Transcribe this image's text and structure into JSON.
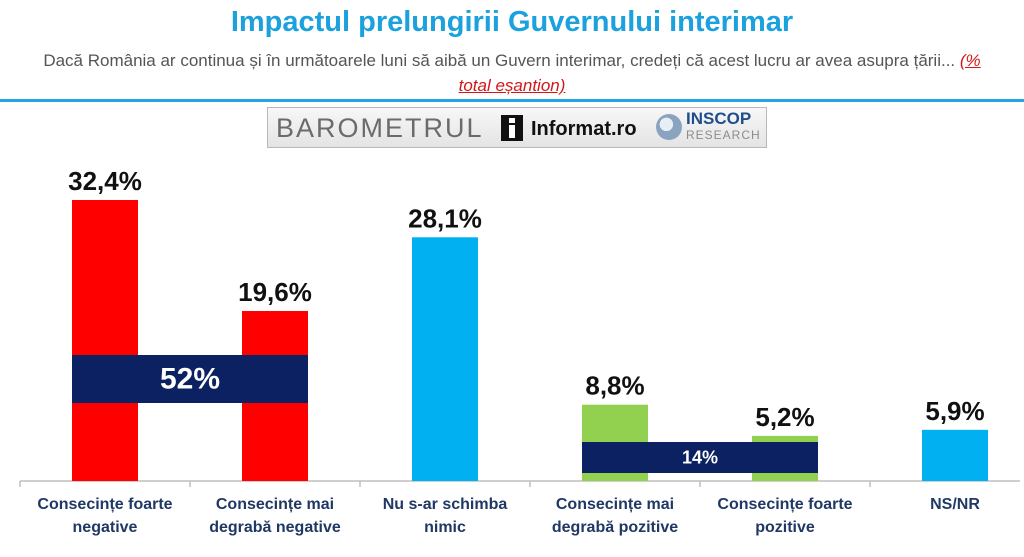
{
  "header": {
    "title": "Impactul prelungirii Guvernului interimar",
    "subtitle": "Dacă România ar continua și în următoarele luni să aibă un Guvern interimar, credeți că acest lucru ar avea asupra țării...",
    "subtitle_note": "(% total eșantion)"
  },
  "logo": {
    "barometrul": "BAROMETRUL",
    "informat": "Informat.ro",
    "inscop": "INSCOP",
    "research": "RESEARCH"
  },
  "colors": {
    "negative": "#ff0000",
    "neutral": "#00b0f0",
    "positive": "#92d050",
    "group_band": "#0b2161",
    "title": "#1ba1dd",
    "category_label": "#1f3864"
  },
  "chart_data": {
    "type": "bar",
    "categories": [
      "Consecințe foarte negative",
      "Consecințe mai degrabă negative",
      "Nu s-ar schimba nimic",
      "Consecințe mai degrabă pozitive",
      "Consecințe foarte pozitive",
      "NS/NR"
    ],
    "values": [
      32.4,
      19.6,
      28.1,
      8.8,
      5.2,
      5.9
    ],
    "value_labels": [
      "32,4%",
      "19,6%",
      "28,1%",
      "8,8%",
      "5,2%",
      "5,9%"
    ],
    "bar_colors": [
      "#ff0000",
      "#ff0000",
      "#00b0f0",
      "#92d050",
      "#92d050",
      "#00b0f0"
    ],
    "groups": [
      {
        "label": "52%",
        "value": 52,
        "from_category": 0,
        "to_category": 1
      },
      {
        "label": "14%",
        "value": 14,
        "from_category": 3,
        "to_category": 4
      }
    ],
    "ylim": [
      0,
      35
    ],
    "grid": false,
    "legend": "none"
  }
}
